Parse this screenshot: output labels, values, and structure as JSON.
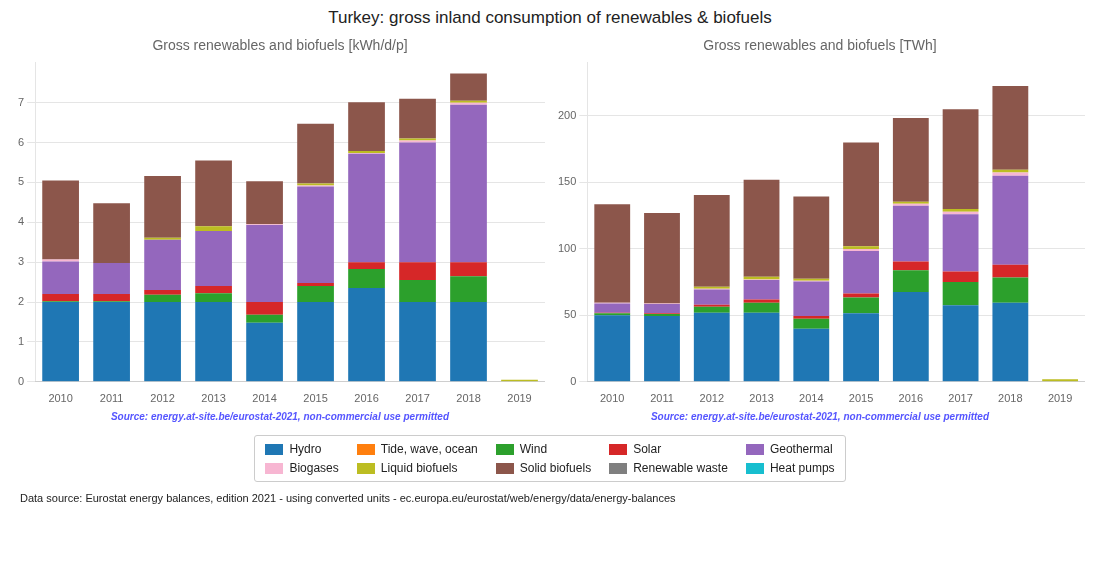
{
  "title": "Turkey: gross inland consumption of renewables & biofuels",
  "footer": "Data source: Eurostat energy balances, edition 2021 - using converted units - ec.europa.eu/eurostat/web/energy/data/energy-balances",
  "chart_data": [
    {
      "type": "bar",
      "stacked": true,
      "grid": true,
      "legend": "bottom",
      "title": "Gross renewables and biofuels [kWh/d/p]",
      "annotation": "Source: energy.at-site.be/eurostat-2021, non-commercial use permitted",
      "categories": [
        2010,
        2011,
        2012,
        2013,
        2014,
        2015,
        2016,
        2017,
        2018,
        2019
      ],
      "ylim": [
        0,
        8
      ],
      "yticks": [
        0,
        1,
        2,
        3,
        4,
        5,
        6,
        7
      ],
      "series": [
        {
          "name": "Hydro",
          "color": "#1f77b4",
          "values": [
            2.0,
            2.0,
            2.0,
            2.0,
            1.48,
            2.0,
            2.35,
            2.0,
            2.0,
            0.0
          ]
        },
        {
          "name": "Tide, wave, ocean",
          "color": "#ff7f0e",
          "values": [
            0.0,
            0.0,
            0.0,
            0.0,
            0.0,
            0.0,
            0.0,
            0.0,
            0.0,
            0.0
          ]
        },
        {
          "name": "Wind",
          "color": "#2ca02c",
          "values": [
            0.02,
            0.02,
            0.18,
            0.22,
            0.2,
            0.4,
            0.48,
            0.55,
            0.65,
            0.0
          ]
        },
        {
          "name": "Solar",
          "color": "#d62728",
          "values": [
            0.18,
            0.18,
            0.12,
            0.18,
            0.32,
            0.08,
            0.17,
            0.45,
            0.35,
            0.0
          ]
        },
        {
          "name": "Geothermal",
          "color": "#9467bd",
          "values": [
            0.82,
            0.78,
            1.26,
            1.38,
            1.93,
            2.42,
            2.72,
            3.0,
            3.95,
            0.0
          ]
        },
        {
          "name": "Biogases",
          "color": "#f7b6d2",
          "values": [
            0.05,
            0.0,
            0.0,
            0.0,
            0.02,
            0.02,
            0.02,
            0.05,
            0.05,
            0.0
          ]
        },
        {
          "name": "Liquid biofuels",
          "color": "#bcbd22",
          "values": [
            0.0,
            0.0,
            0.05,
            0.12,
            0.0,
            0.05,
            0.05,
            0.05,
            0.05,
            0.05
          ]
        },
        {
          "name": "Solid biofuels",
          "color": "#8c564b",
          "values": [
            1.98,
            1.5,
            1.55,
            1.65,
            1.08,
            1.5,
            1.22,
            1.0,
            0.68,
            0.0
          ]
        },
        {
          "name": "Renewable waste",
          "color": "#7f7f7f",
          "values": [
            0.0,
            0.0,
            0.0,
            0.0,
            0.0,
            0.0,
            0.0,
            0.0,
            0.0,
            0.0
          ]
        },
        {
          "name": "Heat pumps",
          "color": "#17becf",
          "values": [
            0.0,
            0.0,
            0.0,
            0.0,
            0.0,
            0.0,
            0.0,
            0.0,
            0.0,
            0.0
          ]
        }
      ]
    },
    {
      "type": "bar",
      "stacked": true,
      "grid": true,
      "legend": "bottom",
      "title": "Gross renewables and biofuels [TWh]",
      "annotation": "Source: energy.at-site.be/eurostat-2021, non-commercial use permitted",
      "categories": [
        2010,
        2011,
        2012,
        2013,
        2014,
        2015,
        2016,
        2017,
        2018,
        2019
      ],
      "ylim": [
        0,
        240
      ],
      "yticks": [
        0,
        50,
        100,
        150,
        200
      ],
      "series": [
        {
          "name": "Hydro",
          "color": "#1f77b4",
          "values": [
            50.0,
            49.5,
            52.0,
            52.0,
            40.0,
            51.5,
            67.5,
            57.5,
            59.5,
            0.5
          ]
        },
        {
          "name": "Tide, wave, ocean",
          "color": "#ff7f0e",
          "values": [
            0.0,
            0.0,
            0.0,
            0.0,
            0.0,
            0.0,
            0.0,
            0.0,
            0.0,
            0.0
          ]
        },
        {
          "name": "Wind",
          "color": "#2ca02c",
          "values": [
            1.5,
            1.5,
            4.5,
            7.5,
            7.5,
            12.0,
            16.5,
            17.5,
            19.0,
            0.0
          ]
        },
        {
          "name": "Solar",
          "color": "#d62728",
          "values": [
            0.5,
            0.5,
            1.5,
            2.5,
            2.0,
            3.0,
            6.5,
            8.0,
            9.5,
            0.0
          ]
        },
        {
          "name": "Geothermal",
          "color": "#9467bd",
          "values": [
            7.0,
            7.0,
            11.5,
            14.5,
            26.0,
            32.0,
            42.0,
            43.0,
            67.0,
            0.0
          ]
        },
        {
          "name": "Biogases",
          "color": "#f7b6d2",
          "values": [
            0.5,
            0.5,
            0.5,
            0.5,
            0.5,
            1.5,
            1.5,
            2.0,
            2.5,
            0.0
          ]
        },
        {
          "name": "Liquid biofuels",
          "color": "#bcbd22",
          "values": [
            0.0,
            0.0,
            1.5,
            2.0,
            1.5,
            2.0,
            1.5,
            2.0,
            2.0,
            1.5
          ]
        },
        {
          "name": "Solid biofuels",
          "color": "#8c564b",
          "values": [
            74.0,
            68.0,
            69.0,
            73.0,
            62.0,
            78.0,
            63.0,
            75.0,
            63.0,
            0.0
          ]
        },
        {
          "name": "Renewable waste",
          "color": "#7f7f7f",
          "values": [
            0.0,
            0.0,
            0.0,
            0.0,
            0.0,
            0.0,
            0.0,
            0.0,
            0.0,
            0.0
          ]
        },
        {
          "name": "Heat pumps",
          "color": "#17becf",
          "values": [
            0.0,
            0.0,
            0.0,
            0.0,
            0.0,
            0.0,
            0.0,
            0.0,
            0.0,
            0.0
          ]
        }
      ]
    }
  ]
}
